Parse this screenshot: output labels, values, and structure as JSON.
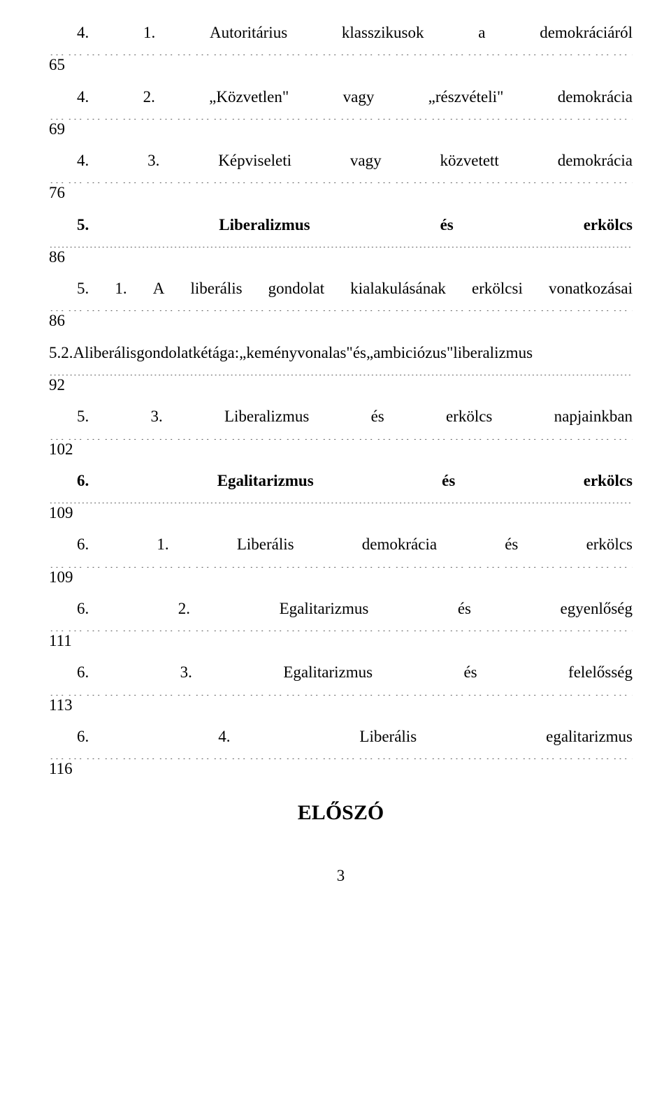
{
  "toc": [
    {
      "label_words": [
        "4.",
        "1.",
        "Autoritárius",
        "klasszikusok",
        "a",
        "demokráciáról"
      ],
      "page": "65",
      "bold": false,
      "dot_mode": "light",
      "indent": true
    },
    {
      "label_words": [
        "4.",
        "2.",
        "„Közvetlen\"",
        "vagy",
        "„részvételi\"",
        "demokrácia"
      ],
      "page": "69",
      "bold": false,
      "dot_mode": "light",
      "indent": true
    },
    {
      "label_words": [
        "4.",
        "3.",
        "Képviseleti",
        "vagy",
        "közvetett",
        "demokrácia"
      ],
      "page": "76",
      "bold": false,
      "dot_mode": "light",
      "indent": true
    },
    {
      "label_words": [
        "5.",
        "Liberalizmus",
        "és",
        "erkölcs"
      ],
      "page": "86",
      "bold": true,
      "dot_mode": "heavy",
      "indent": true
    },
    {
      "label_words": [
        "5.",
        "1.",
        "A",
        "liberális",
        "gondolat",
        "kialakulásának",
        "erkölcsi",
        "vonatkozásai"
      ],
      "page": "86",
      "bold": false,
      "dot_mode": "light",
      "indent": true
    },
    {
      "label_words": [
        "5.",
        "2.",
        "A",
        "liberális",
        "gondolat",
        "két",
        "ága:",
        "„keményvonalas\"",
        "és",
        "„ambiciózus\"",
        "liberalizmus"
      ],
      "page": "92",
      "bold": false,
      "dot_mode": "heavy",
      "indent": false,
      "tight": true
    },
    {
      "label_words": [
        "5.",
        "3.",
        "Liberalizmus",
        "és",
        "erkölcs",
        "napjainkban"
      ],
      "page": "102",
      "bold": false,
      "dot_mode": "light",
      "indent": true
    },
    {
      "label_words": [
        "6.",
        "Egalitarizmus",
        "és",
        "erkölcs"
      ],
      "page": "109",
      "bold": true,
      "dot_mode": "heavy",
      "indent": true
    },
    {
      "label_words": [
        "6.",
        "1.",
        "Liberális",
        "demokrácia",
        "és",
        "erkölcs"
      ],
      "page": "109",
      "bold": false,
      "dot_mode": "light",
      "indent": true
    },
    {
      "label_words": [
        "6.",
        "2.",
        "Egalitarizmus",
        "és",
        "egyenlőség"
      ],
      "page": "111",
      "bold": false,
      "dot_mode": "light",
      "indent": true
    },
    {
      "label_words": [
        "6.",
        "3.",
        "Egalitarizmus",
        "és",
        "felelősség"
      ],
      "page": "113",
      "bold": false,
      "dot_mode": "light",
      "indent": true
    },
    {
      "label_words": [
        "6.",
        "4.",
        "Liberális",
        "egalitarizmus"
      ],
      "page": "116",
      "bold": false,
      "dot_mode": "light",
      "indent": true
    }
  ],
  "heading": "ELŐSZÓ",
  "page_number": "3",
  "dot_strings": {
    "light": "…………………………………………………………………………………………………………………………………………………………………………………",
    "heavy": "....................................................................................................................................................................................................................................................................."
  }
}
